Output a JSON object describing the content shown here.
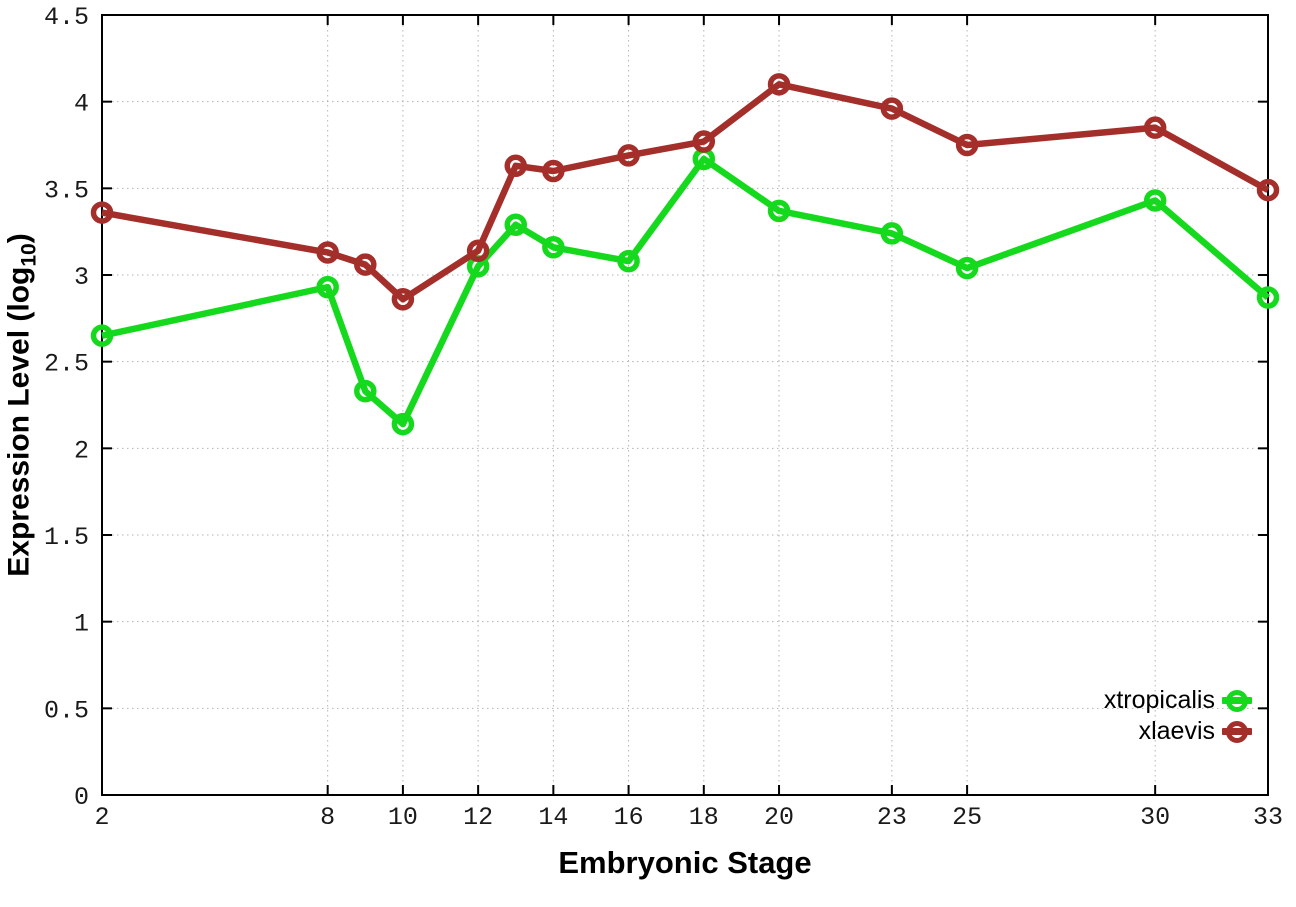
{
  "chart_data": {
    "type": "line",
    "title": "",
    "xlabel": "Embryonic Stage",
    "ylabel": {
      "pre": "Expression Level (log",
      "sub": "10",
      "post": ")"
    },
    "x": [
      2,
      8,
      9,
      10,
      12,
      13,
      14,
      16,
      18,
      20,
      23,
      25,
      30,
      33
    ],
    "x_ticks": [
      2,
      8,
      10,
      12,
      14,
      16,
      18,
      20,
      23,
      25,
      30,
      33
    ],
    "x_tick_labels": [
      "2",
      "8",
      "10",
      "12",
      "14",
      "16",
      "18",
      "20",
      "23",
      "25",
      "30",
      "33"
    ],
    "y_ticks": [
      0,
      0.5,
      1,
      1.5,
      2,
      2.5,
      3,
      3.5,
      4,
      4.5
    ],
    "y_tick_labels": [
      "0",
      "0.5",
      "1",
      "1.5",
      "2",
      "2.5",
      "3",
      "3.5",
      "4",
      "4.5"
    ],
    "xlim": [
      2,
      33
    ],
    "ylim": [
      0,
      4.5
    ],
    "grid": true,
    "grid_style": "dotted",
    "legend_position": "inside-bottom-right",
    "series": [
      {
        "name": "xtropicalis",
        "color": "#15d91c",
        "marker": "open-circle",
        "values": [
          2.65,
          2.93,
          2.33,
          2.14,
          3.05,
          3.29,
          3.16,
          3.08,
          3.67,
          3.37,
          3.24,
          3.04,
          3.43,
          2.87
        ]
      },
      {
        "name": "xlaevis",
        "color": "#a42f2a",
        "marker": "open-circle",
        "values": [
          3.36,
          3.13,
          3.06,
          2.86,
          3.14,
          3.63,
          3.6,
          3.69,
          3.77,
          4.1,
          3.96,
          3.75,
          3.85,
          3.49
        ]
      }
    ]
  }
}
